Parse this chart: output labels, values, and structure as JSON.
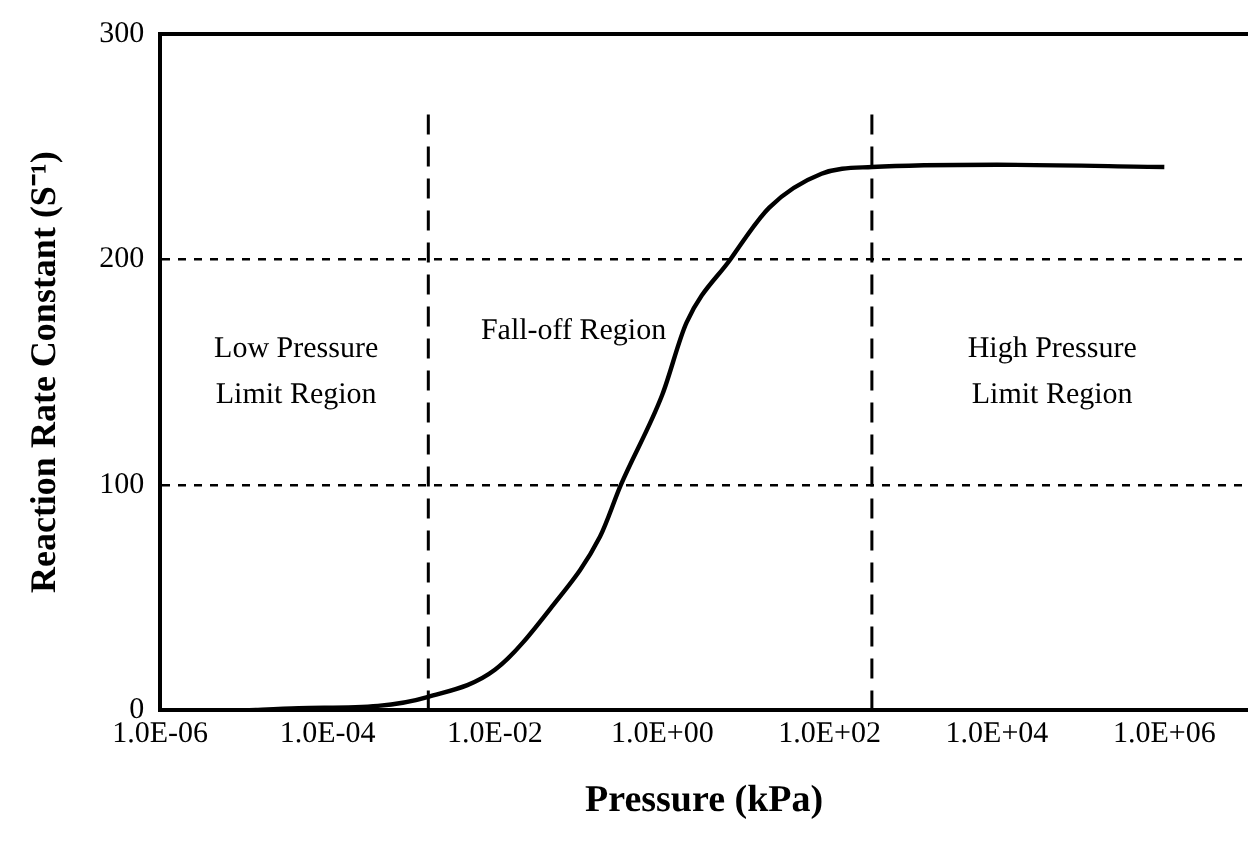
{
  "chart_data": {
    "type": "line",
    "xlabel": "Pressure (kPa)",
    "ylabel": "Reaction Rate Constant (S⁻¹)",
    "log": "x",
    "grid": "y",
    "marker": "none",
    "line_style": "solid",
    "xlim": [
      1e-06,
      10000000.0
    ],
    "ylim": [
      0,
      300
    ],
    "xticks": [
      {
        "value": 1e-06,
        "label": "1.0E-06"
      },
      {
        "value": 0.0001,
        "label": "1.0E-04"
      },
      {
        "value": 0.01,
        "label": "1.0E-02"
      },
      {
        "value": 1,
        "label": "1.0E+00"
      },
      {
        "value": 100,
        "label": "1.0E+02"
      },
      {
        "value": 10000,
        "label": "1.0E+04"
      },
      {
        "value": 1000000,
        "label": "1.0E+06"
      }
    ],
    "yticks": [
      0,
      100,
      200,
      300
    ],
    "series": [
      {
        "color": "#000000",
        "x": [
          1e-05,
          4.5e-05,
          0.0004,
          0.0016,
          0.01,
          0.048,
          0.18,
          0.32,
          1,
          1.95,
          6.5,
          19,
          80,
          320,
          10000,
          1000000
        ],
        "values": [
          0,
          1,
          2,
          6,
          18,
          46,
          77,
          100,
          140,
          172,
          200,
          223,
          238,
          241,
          242,
          241
        ]
      }
    ],
    "ref_lines": [
      {
        "axis": "x",
        "value": 0.0016,
        "line_style": "dashed",
        "color": "#000000"
      },
      {
        "axis": "x",
        "value": 320,
        "line_style": "dashed",
        "color": "#000000"
      }
    ],
    "annotations": [
      "Low Pressure\nLimit Region",
      "Fall-off Region",
      "High Pressure\nLimit Region"
    ]
  }
}
